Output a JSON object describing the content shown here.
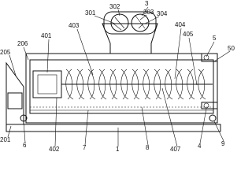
{
  "callouts": [
    "3",
    "302",
    "303",
    "301",
    "304",
    "401",
    "403",
    "404",
    "405",
    "5",
    "50",
    "206",
    "205",
    "201",
    "6",
    "402",
    "7",
    "1",
    "8",
    "407",
    "4",
    "9"
  ]
}
